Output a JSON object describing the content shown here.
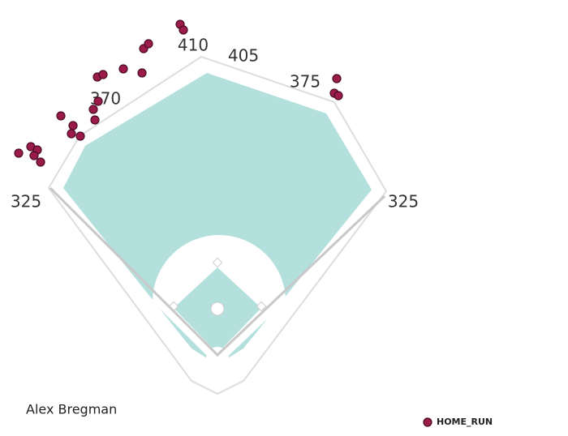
{
  "field": {
    "distances": [
      "325",
      "370",
      "410",
      "405",
      "375",
      "325"
    ]
  },
  "player": "Alex Bregman",
  "legend": {
    "label": "HOME_RUN"
  }
}
